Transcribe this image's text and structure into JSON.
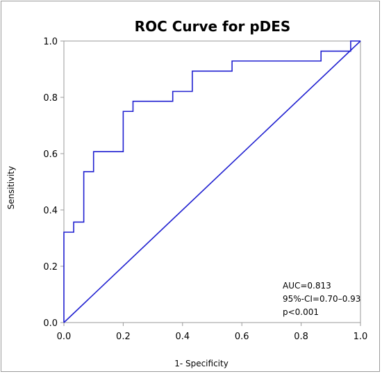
{
  "chart_data": {
    "type": "line",
    "title": "ROC Curve for pDES",
    "xlabel": "1- Specificity",
    "ylabel": "Sensitivity",
    "xlim": [
      0,
      1
    ],
    "ylim": [
      0,
      1
    ],
    "x_ticks": [
      "0.0",
      "0.2",
      "0.4",
      "0.6",
      "0.8",
      "1.0"
    ],
    "y_ticks": [
      "0.0",
      "0.2",
      "0.4",
      "0.6",
      "0.8",
      "1.0"
    ],
    "grid": false,
    "series": [
      {
        "color": "#1f1fd0",
        "x": [
          0.0,
          0.0,
          0.033,
          0.033,
          0.067,
          0.067,
          0.1,
          0.1,
          0.2,
          0.2,
          0.233,
          0.233,
          0.367,
          0.367,
          0.433,
          0.433,
          0.567,
          0.567,
          0.867,
          0.867,
          0.967,
          0.967,
          1.0
        ],
        "y": [
          0.0,
          0.321,
          0.321,
          0.357,
          0.357,
          0.536,
          0.536,
          0.607,
          0.607,
          0.75,
          0.75,
          0.786,
          0.786,
          0.821,
          0.821,
          0.893,
          0.893,
          0.929,
          0.929,
          0.964,
          0.964,
          1.0,
          1.0
        ]
      },
      {
        "color": "#1f1fd0",
        "x": [
          0,
          1
        ],
        "y": [
          0,
          1
        ]
      }
    ],
    "annotations": [
      "AUC=0.813",
      "95%-CI=0.70–0.93",
      "p<0.001"
    ]
  }
}
